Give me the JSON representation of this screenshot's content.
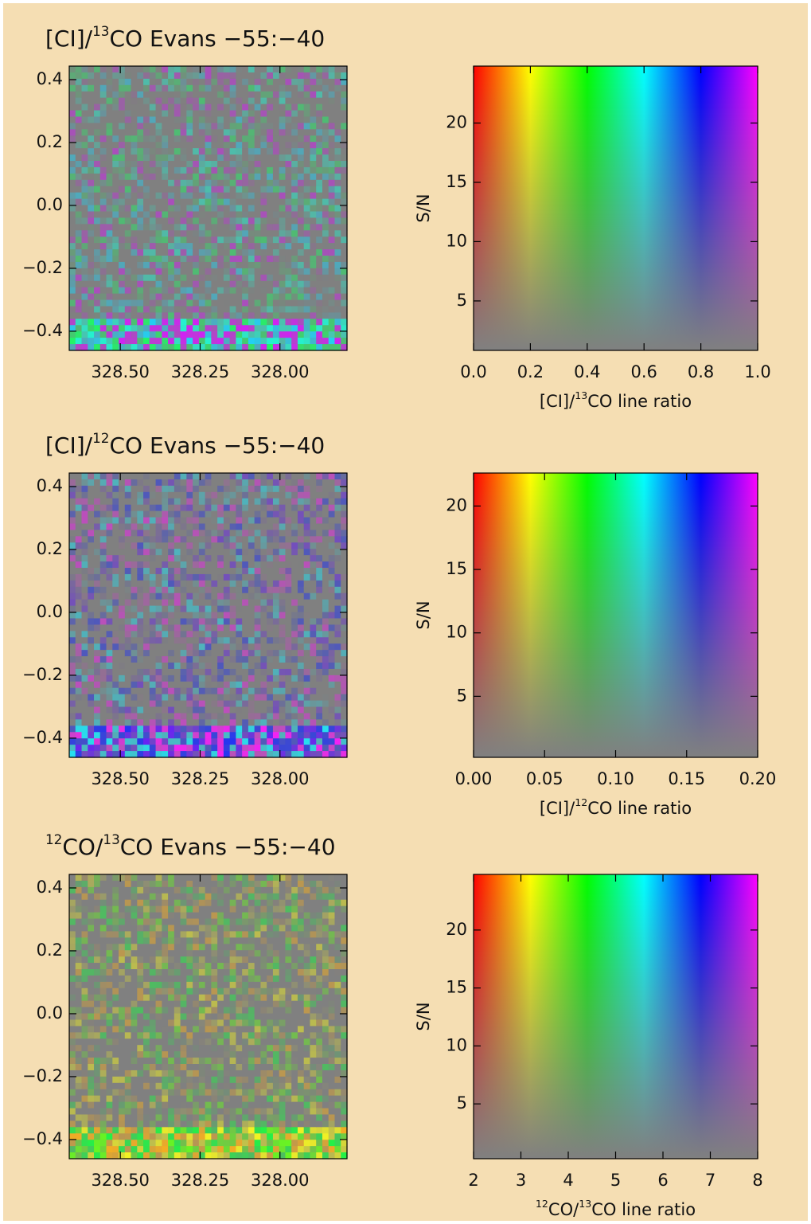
{
  "chart_data": [
    {
      "type": "image",
      "title": [
        {
          "text": "[CI]/"
        },
        {
          "text": "13",
          "sup": true
        },
        {
          "text": "CO Evans  −55:−40"
        }
      ],
      "xlim": [
        328.66,
        327.79
      ],
      "xticks": [
        {
          "value": 328.5,
          "label": "328.50"
        },
        {
          "value": 328.25,
          "label": "328.25"
        },
        {
          "value": 328.0,
          "label": "328.00"
        }
      ],
      "ylim": [
        -0.461,
        0.443
      ],
      "yticks": [
        {
          "value": -0.4,
          "label": "−0.4"
        },
        {
          "value": -0.2,
          "label": "−0.2"
        },
        {
          "value": 0,
          "label": "0.0"
        },
        0.2,
        0.4
      ]
    },
    {
      "type": "colorbar",
      "xlabel": [
        {
          "text": "[CI]/"
        },
        {
          "text": "13",
          "sup": true
        },
        {
          "text": "CO line ratio"
        }
      ],
      "ylabel": "S/N",
      "xlim": [
        0,
        1
      ],
      "xticks": [
        {
          "value": 0,
          "label": "0.0"
        },
        0.2,
        0.4,
        0.6,
        0.8,
        {
          "value": 1,
          "label": "1.0"
        }
      ],
      "ylim": [
        0.83,
        24.8
      ],
      "yticks": [
        5,
        10,
        15,
        20
      ]
    },
    {
      "type": "image",
      "title": [
        {
          "text": "[CI]/"
        },
        {
          "text": "12",
          "sup": true
        },
        {
          "text": "CO Evans  −55:−40"
        }
      ],
      "xlim": [
        328.66,
        327.79
      ],
      "xticks": [
        {
          "value": 328.5,
          "label": "328.50"
        },
        {
          "value": 328.25,
          "label": "328.25"
        },
        {
          "value": 328.0,
          "label": "328.00"
        }
      ],
      "ylim": [
        -0.461,
        0.443
      ],
      "yticks": [
        {
          "value": -0.4,
          "label": "−0.4"
        },
        {
          "value": -0.2,
          "label": "−0.2"
        },
        {
          "value": 0,
          "label": "0.0"
        },
        0.2,
        0.4
      ]
    },
    {
      "type": "colorbar",
      "xlabel": [
        {
          "text": "[CI]/"
        },
        {
          "text": "12",
          "sup": true
        },
        {
          "text": "CO line ratio"
        }
      ],
      "ylabel": "S/N",
      "xlim": [
        0,
        0.2
      ],
      "xticks": [
        {
          "value": 0,
          "label": "0.00"
        },
        0.05,
        {
          "value": 0.1,
          "label": "0.10"
        },
        0.15,
        {
          "value": 0.2,
          "label": "0.20"
        }
      ],
      "ylim": [
        0.19,
        22.6
      ],
      "yticks": [
        5,
        10,
        15,
        20
      ]
    },
    {
      "type": "image",
      "title": [
        {
          "text": "12",
          "sup": true
        },
        {
          "text": "CO/"
        },
        {
          "text": "13",
          "sup": true
        },
        {
          "text": "CO Evans  −55:−40"
        }
      ],
      "xlim": [
        328.66,
        327.79
      ],
      "xticks": [
        {
          "value": 328.5,
          "label": "328.50"
        },
        {
          "value": 328.25,
          "label": "328.25"
        },
        {
          "value": 328.0,
          "label": "328.00"
        }
      ],
      "ylim": [
        -0.461,
        0.443
      ],
      "yticks": [
        {
          "value": -0.4,
          "label": "−0.4"
        },
        {
          "value": -0.2,
          "label": "−0.2"
        },
        {
          "value": 0,
          "label": "0.0"
        },
        0.2,
        0.4
      ]
    },
    {
      "type": "colorbar",
      "xlabel": [
        {
          "text": "12",
          "sup": true
        },
        {
          "text": "CO/"
        },
        {
          "text": "13",
          "sup": true
        },
        {
          "text": "CO line ratio"
        }
      ],
      "ylabel": "S/N",
      "xlim": [
        2,
        8
      ],
      "xticks": [
        2,
        3,
        4,
        5,
        6,
        7,
        8
      ],
      "ylim": [
        0.27,
        24.8
      ],
      "yticks": [
        5,
        10,
        15,
        20
      ]
    }
  ]
}
